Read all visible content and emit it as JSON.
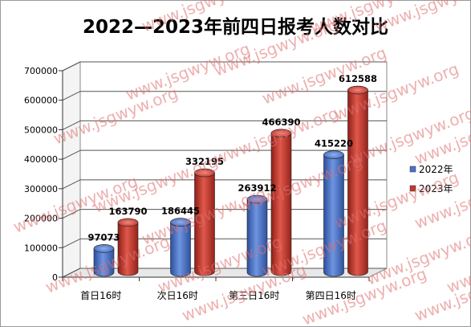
{
  "chart_data": {
    "type": "bar",
    "title": "2022—2023年前四日报考人数对比",
    "categories": [
      "首日16时",
      "次日16时",
      "第三日16时",
      "第四日16时"
    ],
    "series": [
      {
        "name": "2022年",
        "values": [
          97073,
          186445,
          263912,
          415220
        ],
        "color": "#4a72c8"
      },
      {
        "name": "2023年",
        "values": [
          163790,
          332195,
          466390,
          612588
        ],
        "color": "#c0392b"
      }
    ],
    "ylim": [
      0,
      700000
    ],
    "yticks": [
      "0",
      "100000",
      "200000",
      "300000",
      "400000",
      "500000",
      "600000",
      "700000"
    ],
    "grid": true,
    "legend_position": "right",
    "watermark": "www.jsgwyw.org"
  }
}
